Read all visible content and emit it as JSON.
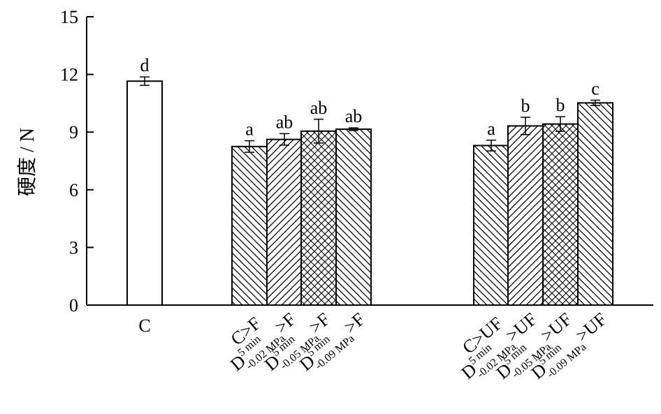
{
  "chart_data": {
    "type": "bar",
    "title": "",
    "xlabel": "",
    "ylabel": "硬度 / N",
    "ylim": [
      0,
      15
    ],
    "yticks": [
      0,
      3,
      6,
      9,
      12,
      15
    ],
    "grid": false,
    "legend": "none",
    "categories": [
      {
        "main": "C",
        "sup": "",
        "sub": "",
        "suffix": ""
      },
      {
        "main": "C>F",
        "sup": "",
        "sub": "",
        "suffix": ""
      },
      {
        "main": "D",
        "sup": "5 min",
        "sub": "-0.02 MPa",
        "suffix": ">F"
      },
      {
        "main": "D",
        "sup": "5 min",
        "sub": "-0.05 MPa",
        "suffix": ">F"
      },
      {
        "main": "D",
        "sup": "5 min",
        "sub": "-0.09 MPa",
        "suffix": ">F"
      },
      {
        "main": "C>UF",
        "sup": "",
        "sub": "",
        "suffix": ""
      },
      {
        "main": "D",
        "sup": "5 min",
        "sub": "-0.02 MPa",
        "suffix": ">UF"
      },
      {
        "main": "D",
        "sup": "5 min",
        "sub": "-0.05 MPa",
        "suffix": ">UF"
      },
      {
        "main": "D",
        "sup": "5 min",
        "sub": "-0.09 MPa",
        "suffix": ">UF"
      }
    ],
    "values": [
      11.65,
      8.25,
      8.62,
      9.05,
      9.15,
      8.3,
      9.32,
      9.42,
      10.52
    ],
    "errors": [
      0.22,
      0.3,
      0.3,
      0.62,
      0.07,
      0.28,
      0.45,
      0.38,
      0.14
    ],
    "significance": [
      "d",
      "a",
      "ab",
      "ab",
      "ab",
      "a",
      "b",
      "b",
      "c"
    ],
    "patterns": [
      "none",
      "diag-down",
      "diag-up",
      "cross",
      "diag-down",
      "diag-down",
      "diag-up",
      "cross",
      "diag-down"
    ],
    "colors": {
      "bar_fill": "#ffffff",
      "stroke": "#000000"
    }
  }
}
